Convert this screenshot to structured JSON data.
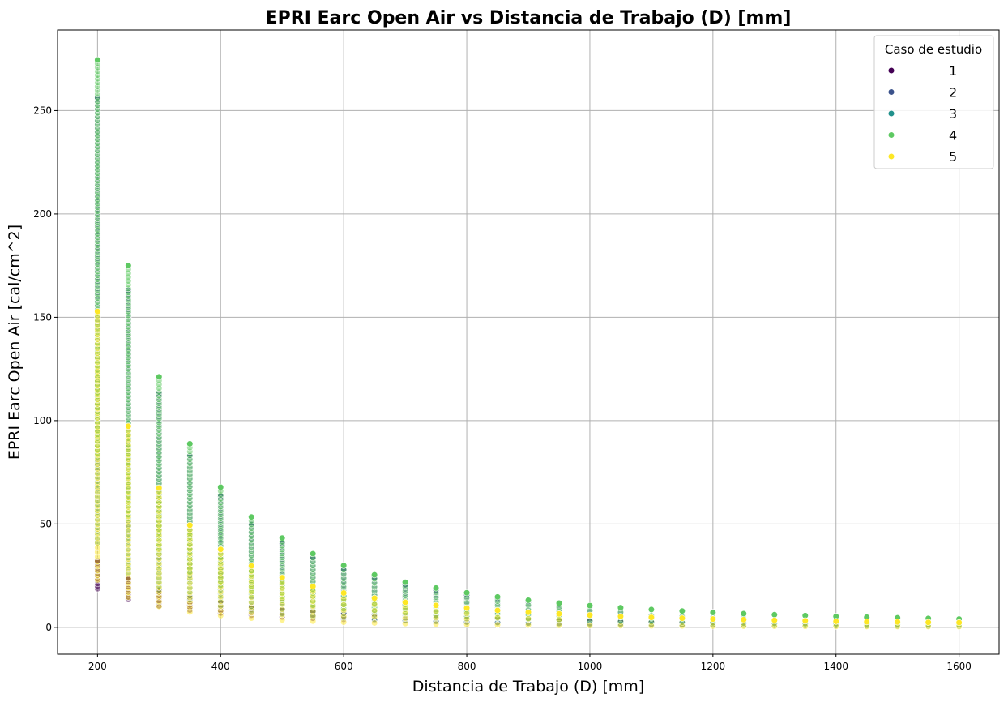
{
  "chart_data": {
    "type": "scatter",
    "title": "EPRI Earc Open Air vs Distancia de Trabajo (D) [mm]",
    "xlabel": "Distancia de Trabajo (D) [mm]",
    "ylabel": "EPRI Earc Open Air [cal/cm^2]",
    "xlim": [
      135,
      1665
    ],
    "ylim": [
      -13,
      289
    ],
    "xticks": [
      200,
      400,
      600,
      800,
      1000,
      1200,
      1400,
      1600
    ],
    "yticks": [
      0,
      50,
      100,
      150,
      200,
      250
    ],
    "grid": true,
    "legend": {
      "title": "Caso de estudio",
      "placement": "top-right"
    },
    "distances": [
      200,
      250,
      300,
      350,
      400,
      450,
      500,
      550,
      600,
      650,
      700,
      750,
      800,
      850,
      900,
      950,
      1000,
      1050,
      1100,
      1150,
      1200,
      1250,
      1300,
      1350,
      1400,
      1450,
      1500,
      1550,
      1600
    ],
    "series": [
      {
        "name": "1",
        "color": "#440154",
        "max_values": [
          32.2,
          23.2,
          17.9,
          14.4,
          11.9,
          10.1,
          8.7,
          7.6,
          6.7,
          6.0,
          5.4,
          4.9,
          4.4,
          4.1,
          3.7,
          3.4,
          3.2,
          3.0,
          2.8,
          2.6,
          2.4,
          2.3,
          2.1,
          2.0,
          1.9,
          1.8,
          1.7,
          1.6,
          1.5
        ],
        "min_ratio": 0.58
      },
      {
        "name": "2",
        "color": "#3b528b",
        "max_values": [
          256.0,
          163.0,
          113.0,
          82.8,
          63.3,
          50.0,
          40.5,
          33.5,
          28.1,
          24.0,
          20.6,
          18.0,
          15.8,
          14.0,
          12.5,
          11.2,
          10.1,
          9.2,
          8.4,
          7.7,
          7.0,
          6.5,
          6.0,
          5.6,
          5.2,
          4.8,
          4.5,
          4.2,
          4.0
        ],
        "min_ratio": 0.3
      },
      {
        "name": "3",
        "color": "#21918c",
        "max_values": [
          136.0,
          87.0,
          60.4,
          44.4,
          34.0,
          26.9,
          21.8,
          18.0,
          15.1,
          12.9,
          11.1,
          9.7,
          8.5,
          7.5,
          6.7,
          6.0,
          5.4,
          4.9,
          4.5,
          4.1,
          3.8,
          3.5,
          3.2,
          3.0,
          2.8,
          2.6,
          2.4,
          2.3,
          2.1
        ],
        "min_ratio": 0.3
      },
      {
        "name": "4",
        "color": "#5ec962",
        "max_values": [
          274.5,
          175.0,
          121.2,
          88.8,
          67.8,
          53.4,
          43.2,
          35.6,
          29.9,
          25.4,
          21.8,
          19.0,
          16.7,
          14.7,
          13.1,
          11.7,
          10.5,
          9.5,
          8.6,
          7.9,
          7.2,
          6.6,
          6.1,
          5.7,
          5.3,
          4.9,
          4.6,
          4.3,
          4.0
        ],
        "min_ratio": 0.3
      },
      {
        "name": "5",
        "color": "#fde725",
        "max_values": [
          152.8,
          97.3,
          67.4,
          49.4,
          37.7,
          29.7,
          24.0,
          19.8,
          16.6,
          14.1,
          12.1,
          10.6,
          9.3,
          8.2,
          7.3,
          6.5,
          5.9,
          5.3,
          4.8,
          4.4,
          4.0,
          3.7,
          3.4,
          3.2,
          2.9,
          2.7,
          2.6,
          2.4,
          2.3
        ],
        "min_ratio": 0.15
      }
    ]
  }
}
